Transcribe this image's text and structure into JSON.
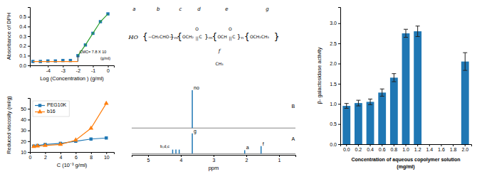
{
  "chart_data": [
    {
      "type": "scatter",
      "xlabel": "Log (Concentration ) (g/ml)",
      "ylabel": "Absorbance of DPH",
      "x": [
        -5,
        -4.5,
        -4,
        -3.5,
        -3,
        -2.5,
        -2.0,
        -1.5,
        -1.0,
        -0.5,
        0.0
      ],
      "series": [
        {
          "type": "scatter",
          "marker": "square",
          "values": [
            0.04,
            0.04,
            0.045,
            0.045,
            0.05,
            0.05,
            0.1,
            0.21,
            0.33,
            0.45,
            0.53
          ]
        },
        {
          "type": "line",
          "marker": "none",
          "line_style": "solid",
          "values": [
            0.04,
            0.04,
            0.04,
            0.04,
            0.04,
            0.04,
            0.04,
            null,
            null,
            null,
            null
          ]
        },
        {
          "type": "line",
          "marker": "none",
          "line_style": "solid",
          "values": [
            null,
            null,
            null,
            null,
            null,
            null,
            0.1,
            0.21,
            0.33,
            0.45,
            0.53
          ]
        }
      ],
      "cmc_line": {
        "x": -2.0,
        "y": [
          0.04,
          0.1
        ]
      },
      "annotations": [
        {
          "text": "CMC= 7.8 X 10",
          "x": -1.9,
          "y": 0.115
        },
        {
          "text": "(g/ml)",
          "x": -0.5,
          "y": 0.09
        }
      ],
      "xlim": [
        -5.2,
        0.4
      ],
      "ylim": [
        0,
        0.6
      ],
      "xticks": [
        -4,
        -3,
        -2,
        -1,
        0
      ],
      "yticks": [
        {
          "value": 0.0,
          "label": "0.0"
        },
        0.1,
        0.2,
        0.3,
        0.4,
        0.5
      ]
    },
    {
      "type": "line",
      "xlabel": "C (10⁻³ g/ml)",
      "ylabel": "Reduced viscosity (ml/g)",
      "x": [
        0.5,
        1,
        2,
        4,
        6,
        8,
        10
      ],
      "series": [
        {
          "name": "PEG10K",
          "marker": "square",
          "line_style": "solid",
          "values": [
            15.5,
            16,
            17,
            18,
            20,
            22,
            23
          ]
        },
        {
          "name": "b16",
          "marker": "triangle",
          "line_style": "solid",
          "values": [
            15,
            15.5,
            16,
            17,
            21,
            32,
            55
          ]
        }
      ],
      "xlim": [
        0,
        11
      ],
      "ylim": [
        10,
        60
      ],
      "xticks": [
        0,
        2,
        4,
        6,
        8,
        10
      ],
      "yticks": [
        10,
        20,
        30,
        40,
        50
      ],
      "legend": "upper left"
    },
    {
      "type": "structure",
      "annotations": [
        {
          "text": "a"
        },
        {
          "text": "b"
        },
        {
          "text": "c"
        },
        {
          "text": "d"
        },
        {
          "text": "e"
        },
        {
          "text": "g"
        },
        {
          "text": "HO"
        },
        {
          "text": "{"
        },
        {
          "text": "−CH₂CHO−"
        },
        {
          "text": "}ₘ"
        },
        {
          "text": "{"
        },
        {
          "text": "OCH₂"
        },
        {
          "text": "O"
        },
        {
          "text": "||"
        },
        {
          "text": "C"
        },
        {
          "text": "}ₘ"
        },
        {
          "text": "{"
        },
        {
          "text": "OCH"
        },
        {
          "text": "O"
        },
        {
          "text": "||"
        },
        {
          "text": "C"
        },
        {
          "text": "}ₙ"
        },
        {
          "text": "{"
        },
        {
          "text": "OCH₂CH₃"
        },
        {
          "text": "}"
        },
        {
          "text": "ₒ"
        },
        {
          "text": "f"
        },
        {
          "text": "CH₃"
        }
      ]
    },
    {
      "type": "stem",
      "xlabel": "ppm",
      "xlim": [
        5.5,
        0.5
      ],
      "xticks": [
        5,
        4,
        3,
        2,
        1
      ],
      "ylim": [
        -0.02,
        1.15
      ],
      "tick_labels": "x",
      "series": [
        {
          "base": 0.44,
          "x": [
            3.65
          ],
          "values": [
            0.65
          ],
          "peak_labels": [
            "no"
          ]
        },
        {
          "base": 0.0,
          "x": [
            3.65,
            4.25,
            4.15,
            4.05,
            2.05,
            1.55
          ],
          "values": [
            0.35,
            0.07,
            0.07,
            0.07,
            0.06,
            0.13
          ],
          "peak_labels": [
            "g",
            null,
            null,
            null,
            "a",
            "f"
          ]
        }
      ],
      "annotations": [
        {
          "text": "B",
          "x": 0.62,
          "y": 0.78
        },
        {
          "text": "A",
          "x": 0.62,
          "y": 0.22
        },
        {
          "text": "b,d,c",
          "x": 4.35,
          "y": 0.09
        }
      ]
    },
    {
      "type": "bar",
      "xlabel": [
        "Concentration of aqueous copolymer solution",
        "(mg/ml)"
      ],
      "ylabel": "β- galactosidase activity",
      "categories": [
        "0.0",
        "0.2",
        "0.4",
        "0.6",
        "0.8",
        "1.0",
        "1.2",
        "1.4",
        "1.6",
        "1.8",
        "2.0"
      ],
      "values": [
        0.95,
        1.02,
        1.05,
        1.28,
        1.65,
        2.75,
        2.8,
        null,
        null,
        null,
        2.05
      ],
      "errors": [
        0.06,
        0.07,
        0.07,
        0.09,
        0.1,
        0.1,
        0.13,
        null,
        null,
        null,
        0.22
      ],
      "ylim": [
        0,
        3.4
      ],
      "yticks": [
        {
          "value": 0.0,
          "label": "0.0"
        },
        0.5,
        {
          "value": 1.0,
          "label": "1.0"
        },
        1.5,
        {
          "value": 2.0,
          "label": "2.0"
        },
        2.5,
        {
          "value": 3.0,
          "label": "3.0"
        }
      ]
    }
  ]
}
